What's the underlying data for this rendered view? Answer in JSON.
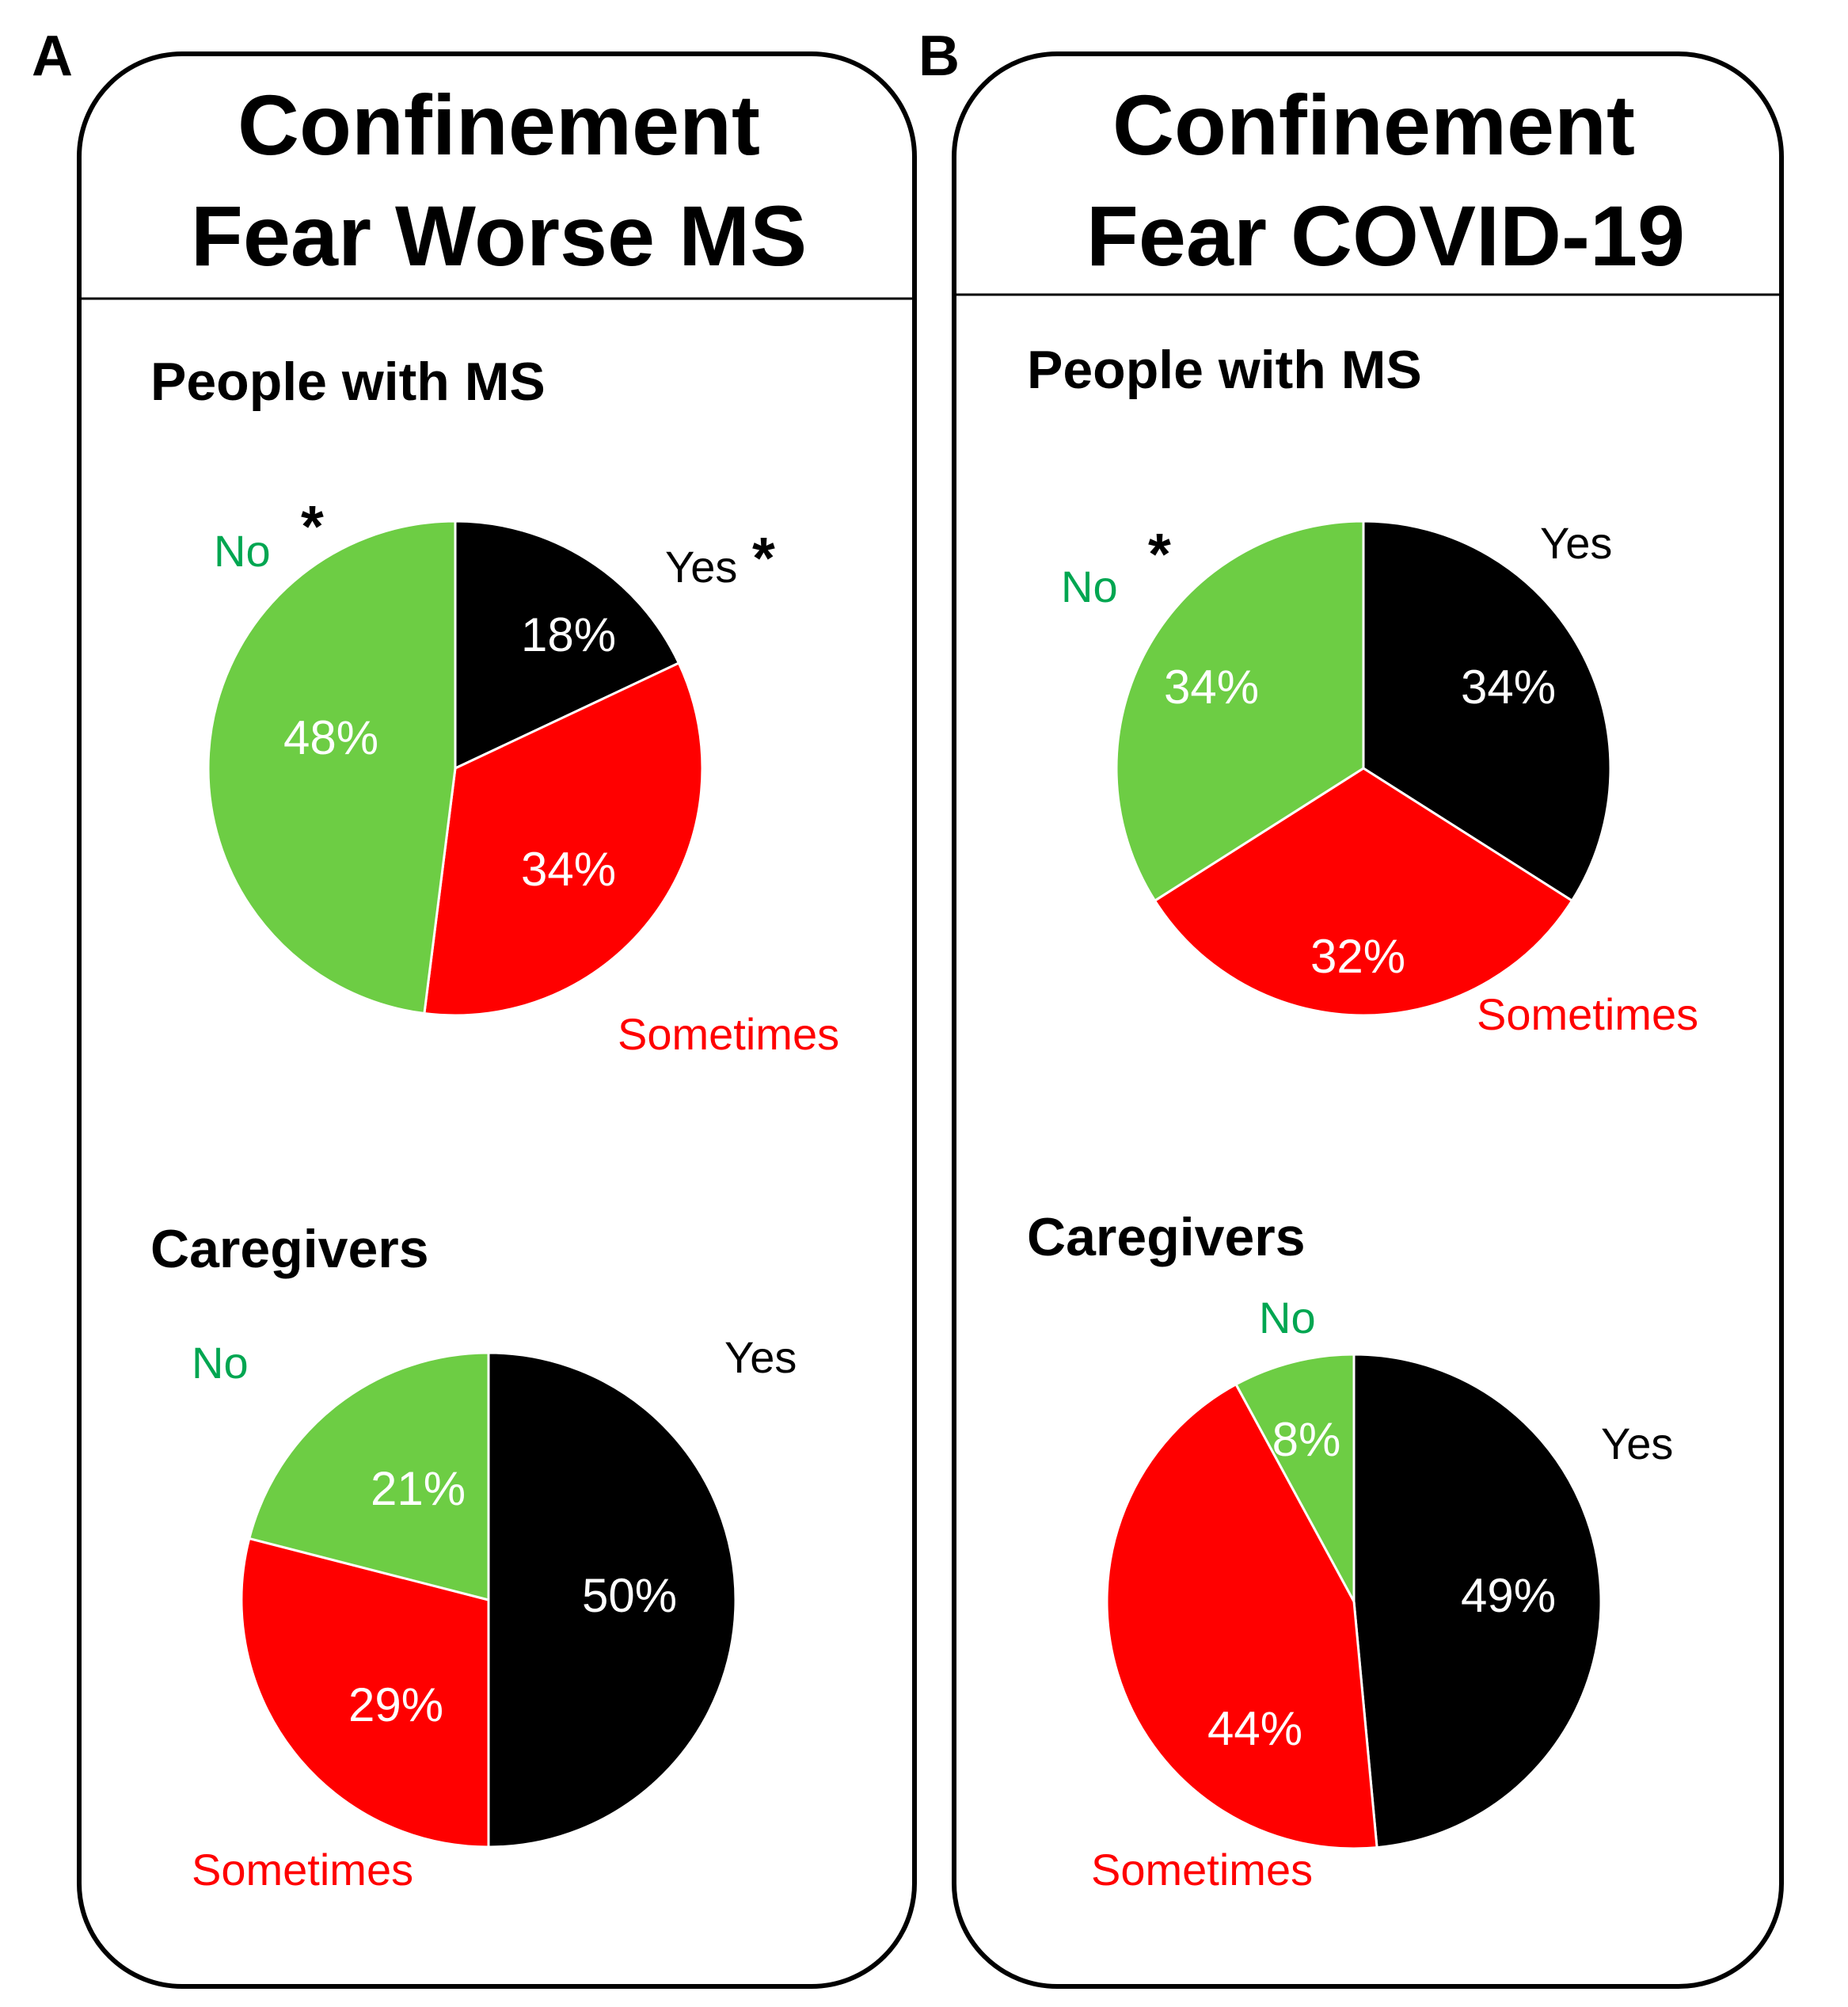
{
  "colors": {
    "yes": "#000000",
    "sometimes": "#ff0000",
    "no": "#6dcd44",
    "no_label": "#00a651",
    "sometimes_label": "#ff0000",
    "yes_label": "#000000",
    "pct_text": "#ffffff",
    "frame": "#000000"
  },
  "panels": [
    {
      "letter": "A",
      "title_line1": "Confinement",
      "title_line2": "Fear Worse MS",
      "groups": [
        {
          "title": "People with MS",
          "labels": {
            "yes": "Yes",
            "sometimes": "Sometimes",
            "no": "No"
          },
          "yes_star": "*",
          "no_star": "*",
          "pct_labels": {
            "yes": "18%",
            "sometimes": "34%",
            "no": "48%"
          }
        },
        {
          "title": "Caregivers",
          "labels": {
            "yes": "Yes",
            "sometimes": "Sometimes",
            "no": "No"
          },
          "yes_star": "",
          "no_star": "",
          "pct_labels": {
            "yes": "50%",
            "sometimes": "29%",
            "no": "21%"
          }
        }
      ]
    },
    {
      "letter": "B",
      "title_line1": "Confinement",
      "title_line2": "Fear COVID-19",
      "groups": [
        {
          "title": "People with MS",
          "labels": {
            "yes": "Yes",
            "sometimes": "Sometimes",
            "no": "No"
          },
          "yes_star": "",
          "no_star": "*",
          "pct_labels": {
            "yes": "34%",
            "sometimes": "32%",
            "no": "34%"
          }
        },
        {
          "title": "Caregivers",
          "labels": {
            "yes": "Yes",
            "sometimes": "Sometimes",
            "no": "No"
          },
          "yes_star": "",
          "no_star": "",
          "pct_labels": {
            "yes": "49%",
            "sometimes": "44%",
            "no": "8%"
          }
        }
      ]
    }
  ],
  "chart_data": [
    {
      "type": "pie",
      "title": "People with MS",
      "panel": "A",
      "categories": [
        "Yes",
        "Sometimes",
        "No"
      ],
      "values": [
        18,
        34,
        48
      ]
    },
    {
      "type": "pie",
      "title": "Caregivers",
      "panel": "A",
      "categories": [
        "Yes",
        "Sometimes",
        "No"
      ],
      "values": [
        50,
        29,
        21
      ]
    },
    {
      "type": "pie",
      "title": "People with MS",
      "panel": "B",
      "categories": [
        "Yes",
        "Sometimes",
        "No"
      ],
      "values": [
        34,
        32,
        34
      ]
    },
    {
      "type": "pie",
      "title": "Caregivers",
      "panel": "B",
      "categories": [
        "Yes",
        "Sometimes",
        "No"
      ],
      "values": [
        49,
        44,
        8
      ]
    }
  ]
}
